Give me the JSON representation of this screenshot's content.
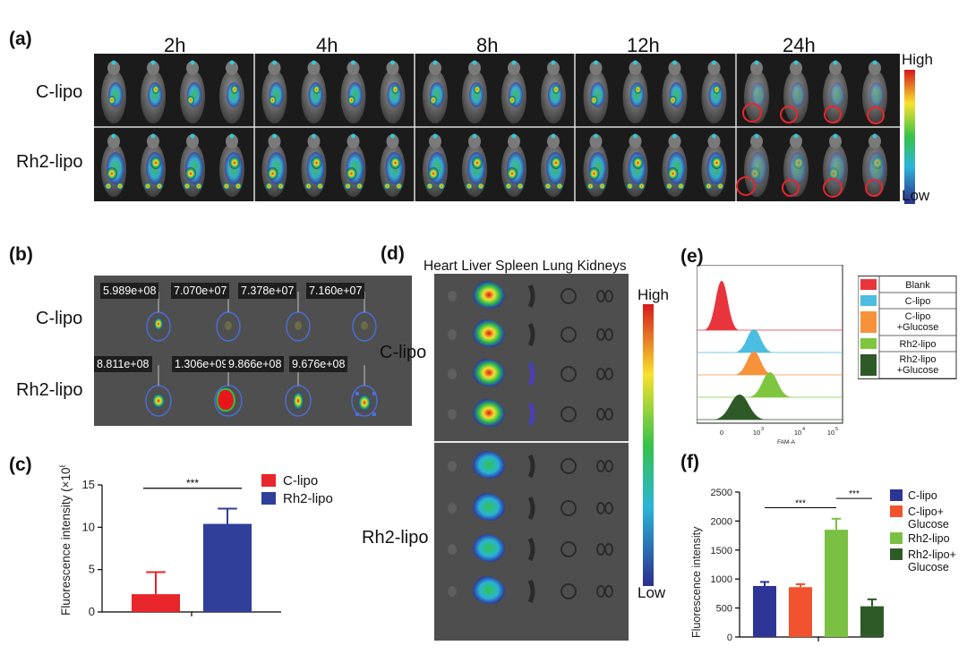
{
  "panel_a": {
    "label": "(a)",
    "times": [
      "2h",
      "4h",
      "8h",
      "12h",
      "24h"
    ],
    "rows": [
      "C-lipo",
      "Rh2-lipo"
    ],
    "scale_high": "High",
    "scale_low": "Low"
  },
  "panel_b": {
    "label": "(b)",
    "rows": [
      "C-lipo",
      "Rh2-lipo"
    ],
    "values_c": [
      "5.989e+08",
      "7.070e+07",
      "7.378e+07",
      "7.160e+07"
    ],
    "values_rh2": [
      "8.811e+08",
      "1.306e+09",
      "9.866e+08",
      "9.676e+08"
    ]
  },
  "panel_d": {
    "label": "(d)",
    "organs": "Heart Liver Spleen Lung Kidneys",
    "rows": [
      "C-lipo",
      "Rh2-lipo"
    ],
    "scale_high": "High",
    "scale_low": "Low"
  },
  "panel_e": {
    "label": "(e)",
    "legend": [
      "Blank",
      "C-lipo",
      "C-lipo\n+Glucose",
      "Rh2-lipo",
      "Rh2-lipo\n+Glucose"
    ],
    "legend_colors": [
      "#e8353b",
      "#4bbde0",
      "#f7923b",
      "#7fc63f",
      "#2e5a27"
    ],
    "xlabel": "FAM-A",
    "xticks": [
      "0",
      "10",
      "10",
      "10"
    ],
    "xtick_exp": [
      "",
      "3",
      "4",
      "5"
    ]
  },
  "chart_data": [
    {
      "type": "bar",
      "panel": "(c)",
      "categories": [
        "C-lipo",
        "Rh2-lipo"
      ],
      "values": [
        2.1,
        10.4
      ],
      "errors": [
        2.6,
        1.8
      ],
      "colors": [
        "#e8262b",
        "#2f3f9a"
      ],
      "ylabel": "Fluorescence intensity (×10",
      "ylabel_exp": "8",
      "ylabel_end": ")",
      "ylim": [
        0,
        15
      ],
      "yticks": [
        "0",
        "5",
        "10",
        "15"
      ],
      "significance": "***",
      "legend": [
        "C-lipo",
        "Rh2-lipo"
      ],
      "legend_position": "top-right"
    },
    {
      "type": "bar",
      "panel": "(f)",
      "categories": [
        "C-lipo",
        "C-lipo+ Glucose",
        "Rh2-lipo",
        "Rh2-lipo+ Glucose"
      ],
      "values": [
        880,
        860,
        1850,
        530
      ],
      "errors": [
        70,
        50,
        190,
        120
      ],
      "colors": [
        "#2d3596",
        "#f0532d",
        "#79c043",
        "#2e5a27"
      ],
      "ylabel": "Fluorescence intensity",
      "ylim": [
        0,
        2500
      ],
      "yticks": [
        "0",
        "500",
        "1000",
        "1500",
        "2000",
        "2500"
      ],
      "significance": [
        "***",
        "***"
      ],
      "legend": [
        "C-lipo",
        "C-lipo+\nGlucose",
        "Rh2-lipo",
        "Rh2-lipo+\nGlucose"
      ],
      "legend_position": "right"
    }
  ]
}
